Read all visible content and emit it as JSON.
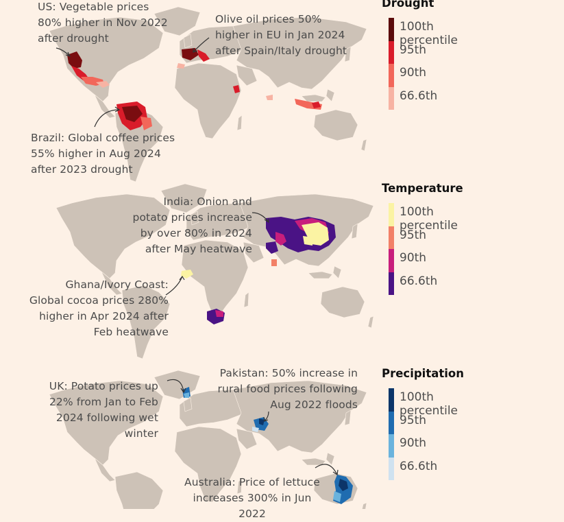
{
  "legends": [
    {
      "id": "drought",
      "title": "Drought",
      "items": [
        {
          "label": "100th percentile",
          "color": "#5c0b0b"
        },
        {
          "label": "95th",
          "color": "#d91c2a"
        },
        {
          "label": "90th",
          "color": "#f2675a"
        },
        {
          "label": "66.6th",
          "color": "#f7b3a3"
        }
      ]
    },
    {
      "id": "temperature",
      "title": "Temperature",
      "items": [
        {
          "label": "100th percentile",
          "color": "#fbf3a3"
        },
        {
          "label": "95th",
          "color": "#f28067"
        },
        {
          "label": "90th",
          "color": "#c81e7c"
        },
        {
          "label": "66.6th",
          "color": "#4a1385"
        }
      ]
    },
    {
      "id": "precipitation",
      "title": "Precipitation",
      "items": [
        {
          "label": "100th percentile",
          "color": "#0c3569"
        },
        {
          "label": "95th",
          "color": "#1f6cb0"
        },
        {
          "label": "90th",
          "color": "#6ab3dd"
        },
        {
          "label": "66.6th",
          "color": "#cfe2f0"
        }
      ]
    }
  ],
  "annotations": {
    "us": "US: Vegetable prices\n80% higher in Nov 2022\nafter drought",
    "olive": "Olive oil prices 50%\nhigher in EU in Jan 2024\nafter Spain/Italy drought",
    "brazil": "Brazil: Global coffee prices\n55% higher in Aug 2024\nafter 2023 drought",
    "india": "India: Onion and\npotato prices increase\nby over 80% in 2024\nafter May heatwave",
    "ghana": "Ghana/Ivory Coast:\nGlobal cocoa prices 280%\nhigher in Apr 2024 after\nFeb heatwave",
    "uk": "UK: Potato prices up\n22% from Jan to Feb\n2024 following wet\nwinter",
    "pakistan": "Pakistan: 50% increase in\nrural food prices following\nAug 2022 floods",
    "australia": "Australia: Price of lettuce\nincreases 300% in Jun 2022"
  }
}
